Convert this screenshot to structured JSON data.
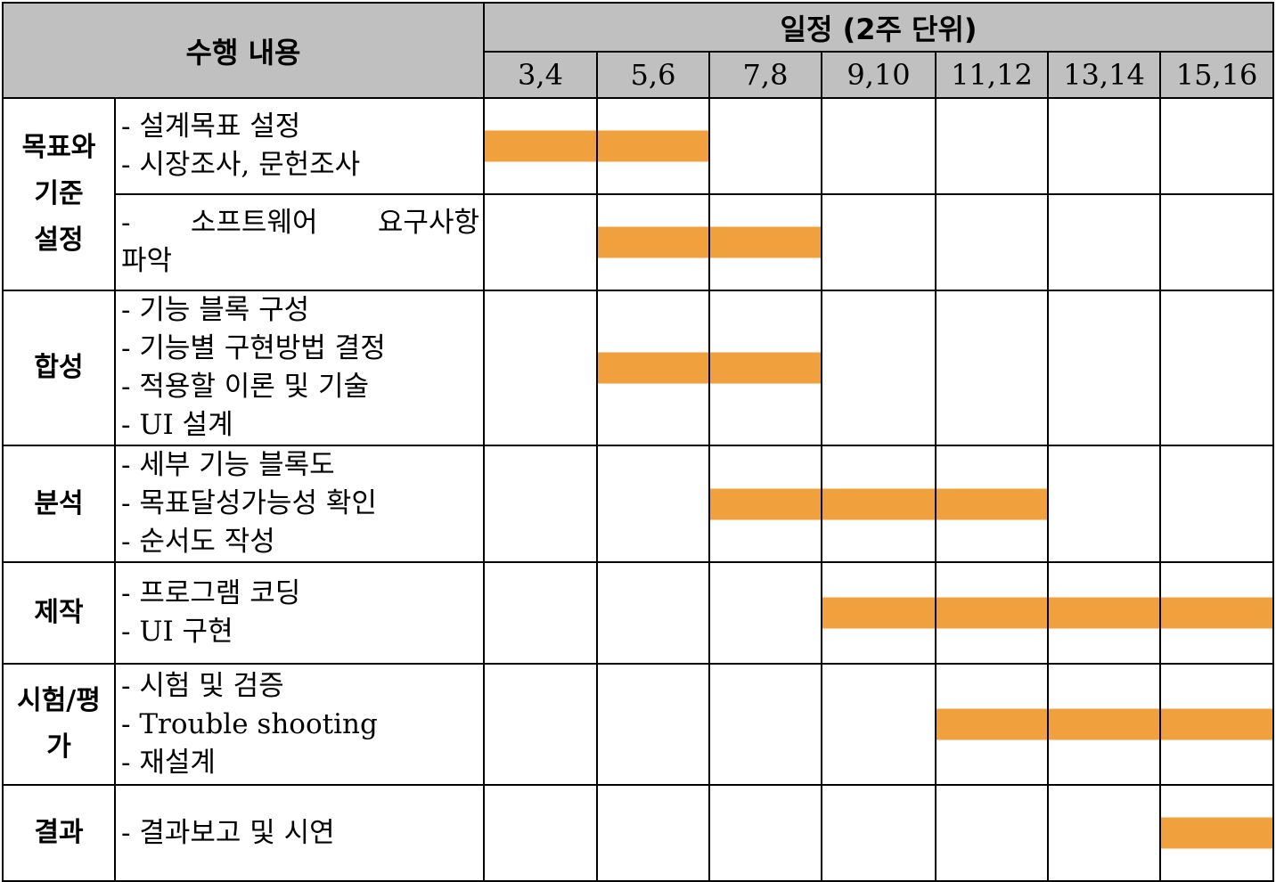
{
  "header": {
    "task_label": "수행 내용",
    "schedule_label": "일정 (2주 단위)",
    "periods": [
      "3,4",
      "5,6",
      "7,8",
      "9,10",
      "11,12",
      "13,14",
      "15,16"
    ]
  },
  "groups": [
    {
      "category": "목표와\n기준\n설정",
      "rows": [
        {
          "tasks": [
            "- 설계목표 설정",
            "- 시장조사, 문헌조사"
          ],
          "bar": [
            0,
            1
          ]
        },
        {
          "tasks": [
            "- 소프트웨어 요구사항",
            "파악"
          ],
          "bar": [
            1,
            2
          ]
        }
      ]
    },
    {
      "category": "합성",
      "rows": [
        {
          "tasks": [
            "- 기능 블록 구성",
            "- 기능별 구현방법 결정",
            "- 적용할 이론 및 기술",
            "- UI 설계"
          ],
          "bar": [
            1,
            2
          ]
        }
      ]
    },
    {
      "category": "분석",
      "rows": [
        {
          "tasks": [
            "- 세부 기능 블록도",
            "- 목표달성가능성 확인",
            "- 순서도 작성"
          ],
          "bar": [
            2,
            4
          ]
        }
      ]
    },
    {
      "category": "제작",
      "rows": [
        {
          "tasks": [
            "- 프로그램 코딩",
            "- UI 구현"
          ],
          "bar": [
            3,
            6
          ]
        }
      ]
    },
    {
      "category": "시험/평\n가",
      "rows": [
        {
          "tasks": [
            "- 시험 및 검증",
            "- Trouble shooting",
            "- 재설계"
          ],
          "bar": [
            4,
            6
          ]
        }
      ]
    },
    {
      "category": "결과",
      "rows": [
        {
          "tasks": [
            "- 결과보고 및 시연"
          ],
          "bar": [
            6,
            6
          ]
        }
      ]
    }
  ],
  "colors": {
    "header_bg": "#c0c0c0",
    "bar": "#f0a03c",
    "border": "#000000"
  }
}
